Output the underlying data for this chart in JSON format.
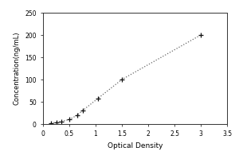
{
  "xlabel": "Optical Density",
  "ylabel": "Concentration(ng/mL)",
  "xlim": [
    0,
    3.5
  ],
  "ylim": [
    0,
    250
  ],
  "xticks": [
    0,
    0.5,
    1.0,
    1.5,
    2.0,
    2.5,
    3.0,
    3.5
  ],
  "yticks": [
    0,
    50,
    100,
    150,
    200,
    250
  ],
  "x_data": [
    0.15,
    0.25,
    0.35,
    0.5,
    0.65,
    0.75,
    1.05,
    1.5,
    3.0
  ],
  "y_data": [
    2,
    4,
    6,
    10,
    20,
    30,
    58,
    100,
    200
  ],
  "line_color": "#666666",
  "marker_color": "#111111",
  "marker": "+",
  "background_color": "#ffffff"
}
